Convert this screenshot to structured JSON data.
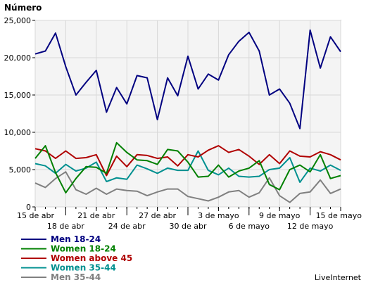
{
  "chart_data": {
    "type": "line",
    "ylabel": "Número",
    "xlabel": "",
    "title": "",
    "ylim": [
      0,
      25000
    ],
    "yticks": [
      "25,000",
      "20,000",
      "15,000",
      "10,000",
      "5,000",
      "0"
    ],
    "ytick_values": [
      25000,
      20000,
      15000,
      10000,
      5000,
      0
    ],
    "x_tick_labels_row1": [
      {
        "i": 0,
        "label": "15 de abr"
      },
      {
        "i": 6,
        "label": "21 de abr"
      },
      {
        "i": 12,
        "label": "27 de abr"
      },
      {
        "i": 18,
        "label": "3 de mayo"
      },
      {
        "i": 24,
        "label": "9 de mayo"
      },
      {
        "i": 30,
        "label": "15 de mayo"
      }
    ],
    "x_tick_labels_row2": [
      {
        "i": 3,
        "label": "18 de abr"
      },
      {
        "i": 9,
        "label": "24 de abr"
      },
      {
        "i": 15,
        "label": "30 de abr"
      },
      {
        "i": 21,
        "label": "6 de mayo"
      },
      {
        "i": 27,
        "label": "12 de mayo"
      }
    ],
    "grid": true,
    "legend_position": "bottom-left",
    "series": [
      {
        "name": "Men 18-24",
        "color": "#000080",
        "values": [
          20500,
          20900,
          23300,
          18800,
          15000,
          16700,
          18300,
          12700,
          16000,
          13800,
          17600,
          17300,
          11700,
          17300,
          14900,
          20200,
          15800,
          17800,
          17000,
          20400,
          22200,
          23400,
          20900,
          15000,
          15800,
          13900,
          10500,
          23700,
          18600,
          22800,
          20800
        ]
      },
      {
        "name": "Women 18-24",
        "color": "#008000",
        "values": [
          6500,
          8200,
          4600,
          1900,
          3800,
          5400,
          5300,
          4500,
          8600,
          7300,
          6300,
          6200,
          5700,
          7700,
          7500,
          6000,
          4000,
          4100,
          5600,
          4000,
          4800,
          5200,
          6200,
          3000,
          2300,
          5000,
          5600,
          4700,
          7000,
          3800,
          4200
        ]
      },
      {
        "name": "Women above 45",
        "color": "#b00000",
        "values": [
          7800,
          7500,
          6500,
          7500,
          6500,
          6600,
          7000,
          4200,
          6800,
          5400,
          7000,
          6900,
          6500,
          6700,
          5500,
          7000,
          6700,
          7600,
          8200,
          7300,
          7700,
          6800,
          5700,
          7000,
          5800,
          7500,
          6800,
          6700,
          7400,
          7000,
          6300
        ]
      },
      {
        "name": "Women 35-44",
        "color": "#009090",
        "values": [
          5800,
          5500,
          4500,
          5700,
          4800,
          5200,
          6000,
          3400,
          3900,
          3700,
          5600,
          5100,
          4500,
          5200,
          4900,
          4900,
          7500,
          4900,
          4300,
          5200,
          4100,
          4000,
          4100,
          5000,
          5200,
          6600,
          3300,
          5200,
          4800,
          5600,
          4900
        ]
      },
      {
        "name": "Men 35-44",
        "color": "#808080",
        "values": [
          3200,
          2600,
          3800,
          4700,
          2300,
          1700,
          2500,
          1700,
          2400,
          2200,
          2100,
          1500,
          2000,
          2400,
          2400,
          1400,
          1100,
          800,
          1300,
          2000,
          2200,
          1300,
          1900,
          3900,
          1500,
          600,
          1800,
          2000,
          3600,
          1800,
          2400
        ]
      }
    ]
  },
  "brand": "LiveInternet"
}
